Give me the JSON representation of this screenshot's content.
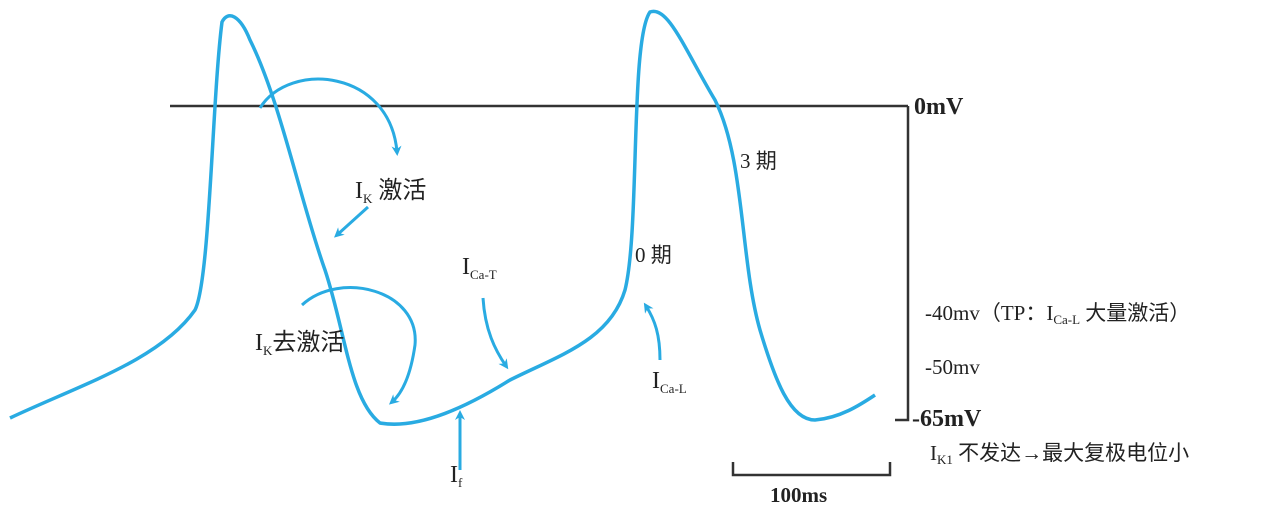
{
  "labels": {
    "ik_act": {
      "main": "I",
      "sub": "K",
      "after": " 激活"
    },
    "ik_deact": {
      "main": "I",
      "sub": "K",
      "after": "去激活"
    },
    "ica_t": {
      "main": "I",
      "sub": "Ca-T"
    },
    "i_f": {
      "main": "I",
      "sub": "f"
    },
    "ica_l": {
      "main": "I",
      "sub": "Ca-L"
    },
    "phase0": "0 期",
    "phase3": "3 期"
  },
  "scale": {
    "zero": "0mV",
    "v40": {
      "before": "-40mv（TP：I",
      "sub": "Ca-L",
      "after": " 大量激活）"
    },
    "v50": "-50mv",
    "v65": "-65mV",
    "ik1": {
      "main": "I",
      "sub": "K1",
      "after": " 不发达→最大复极电位小"
    },
    "time": "100ms"
  }
}
